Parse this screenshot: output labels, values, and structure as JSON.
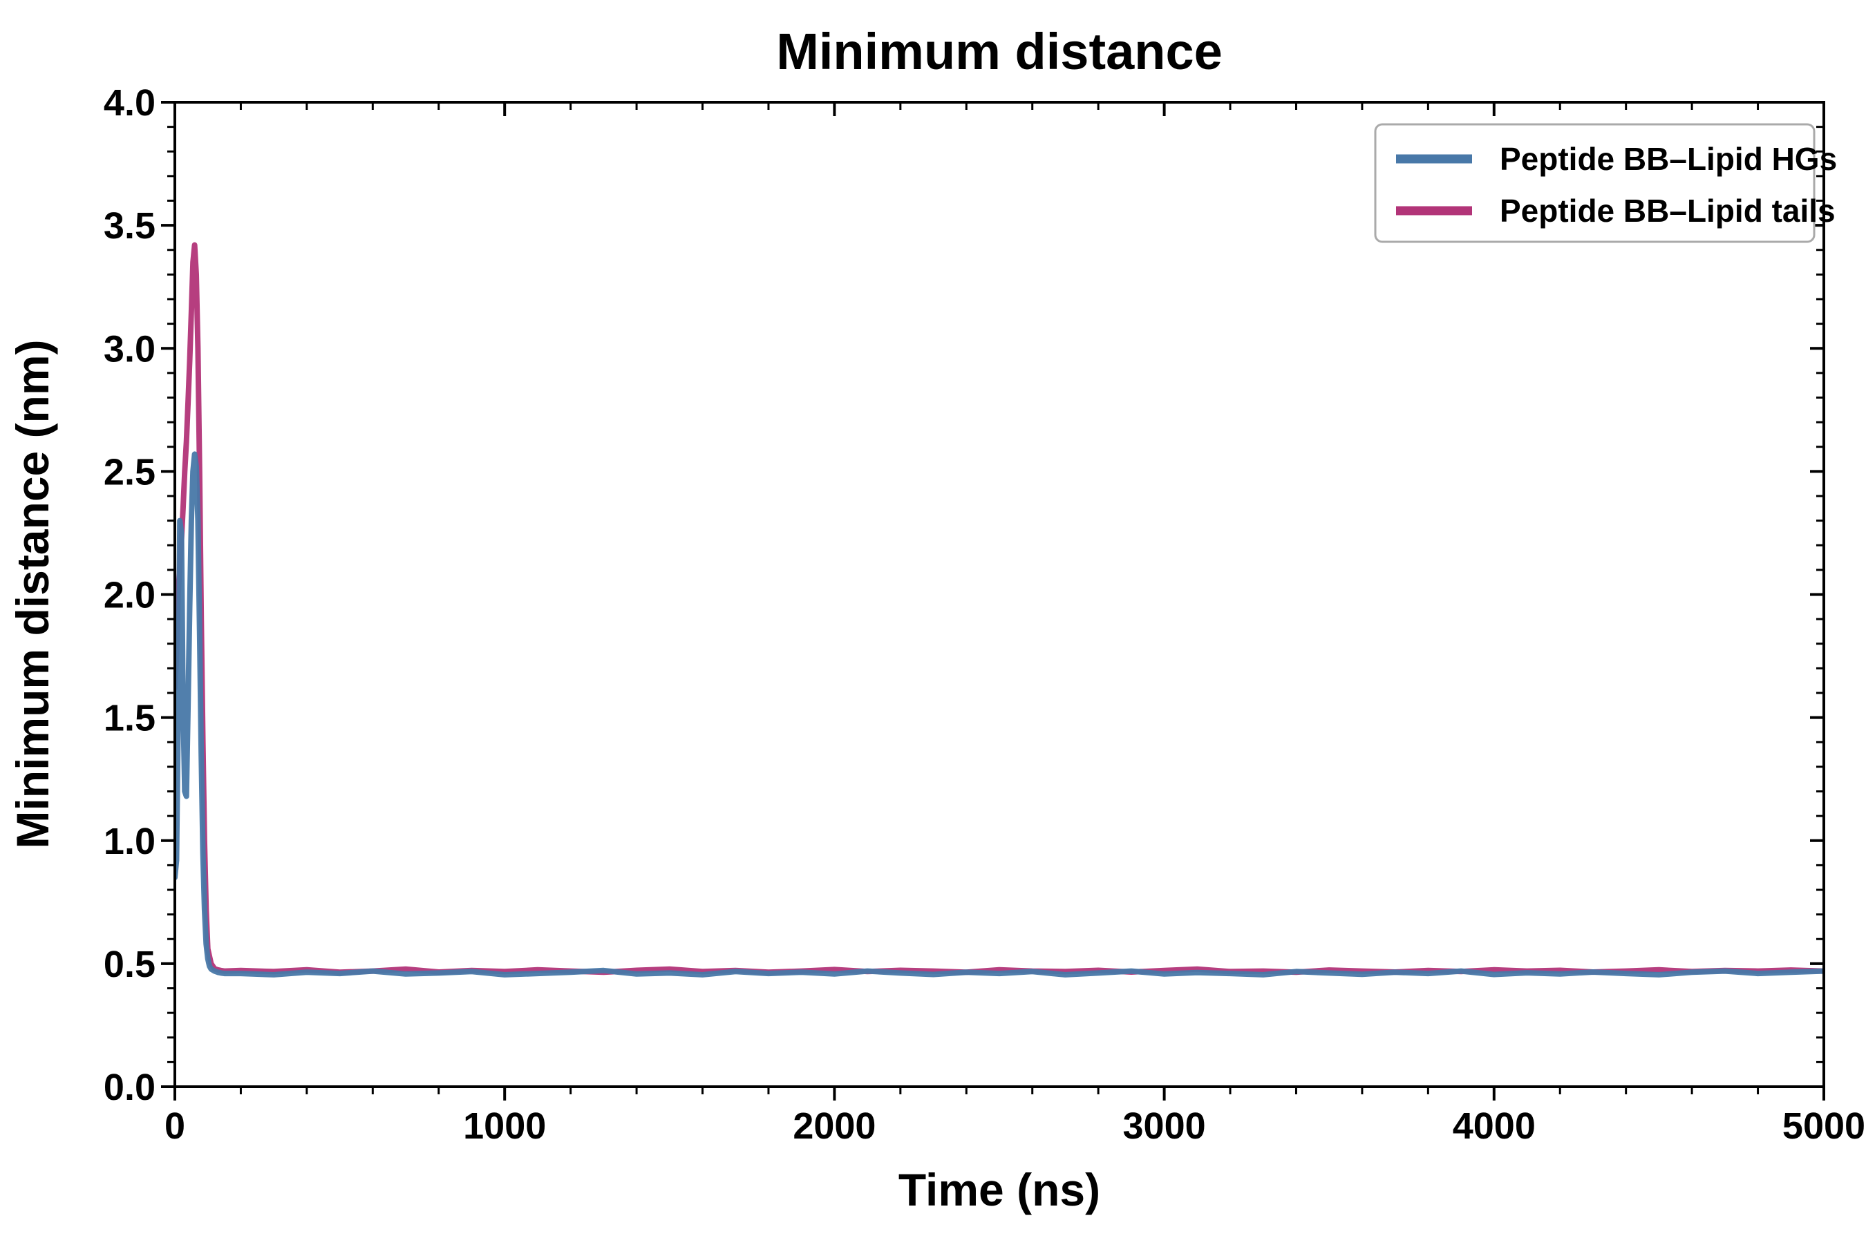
{
  "chart_data": {
    "type": "line",
    "title": "Minimum distance",
    "xlabel": "Time (ns)",
    "ylabel": "Minimum distance (nm)",
    "xlim": [
      0,
      5000
    ],
    "ylim": [
      0.0,
      4.0
    ],
    "xticks": [
      0,
      1000,
      2000,
      3000,
      4000,
      5000
    ],
    "xtick_labels": [
      "0",
      "1000",
      "2000",
      "3000",
      "4000",
      "5000"
    ],
    "yticks": [
      0.0,
      0.5,
      1.0,
      1.5,
      2.0,
      2.5,
      3.0,
      3.5,
      4.0
    ],
    "ytick_labels": [
      "0.0",
      "0.5",
      "1.0",
      "1.5",
      "2.0",
      "2.5",
      "3.0",
      "3.5",
      "4.0"
    ],
    "x_minor_step": 200,
    "y_minor_step": 0.1,
    "grid": false,
    "legend_position": "upper right",
    "axis_color": "#000000",
    "legend_border_color": "#aaaaaa",
    "series": [
      {
        "name": "Peptide BB–Lipid HGs",
        "color": "#4878A8",
        "x": [
          0,
          5,
          10,
          15,
          20,
          25,
          30,
          35,
          40,
          45,
          50,
          55,
          60,
          65,
          70,
          75,
          80,
          85,
          90,
          95,
          100,
          105,
          110,
          120,
          130,
          140,
          150,
          200,
          300,
          400,
          500,
          600,
          700,
          800,
          900,
          1000,
          1100,
          1200,
          1300,
          1400,
          1500,
          1600,
          1700,
          1800,
          1900,
          2000,
          2100,
          2200,
          2300,
          2400,
          2500,
          2600,
          2700,
          2800,
          2900,
          3000,
          3100,
          3200,
          3300,
          3400,
          3500,
          3600,
          3700,
          3800,
          3900,
          4000,
          4100,
          4200,
          4300,
          4400,
          4500,
          4600,
          4700,
          4800,
          4900,
          5000
        ],
        "y": [
          0.85,
          0.92,
          1.5,
          2.3,
          2.25,
          1.55,
          1.2,
          1.18,
          1.55,
          1.95,
          2.3,
          2.5,
          2.57,
          2.52,
          2.3,
          1.85,
          1.35,
          0.95,
          0.72,
          0.58,
          0.52,
          0.49,
          0.478,
          0.47,
          0.465,
          0.462,
          0.46,
          0.46,
          0.455,
          0.465,
          0.46,
          0.47,
          0.458,
          0.462,
          0.468,
          0.455,
          0.46,
          0.465,
          0.472,
          0.458,
          0.462,
          0.455,
          0.468,
          0.46,
          0.465,
          0.458,
          0.47,
          0.462,
          0.456,
          0.465,
          0.46,
          0.468,
          0.455,
          0.462,
          0.47,
          0.458,
          0.464,
          0.46,
          0.455,
          0.468,
          0.462,
          0.457,
          0.465,
          0.46,
          0.47,
          0.456,
          0.463,
          0.458,
          0.466,
          0.46,
          0.455,
          0.465,
          0.47,
          0.46,
          0.465,
          0.47
        ]
      },
      {
        "name": "Peptide BB–Lipid tails",
        "color": "#B23478",
        "x": [
          0,
          5,
          10,
          15,
          20,
          25,
          30,
          35,
          40,
          45,
          50,
          55,
          60,
          65,
          70,
          75,
          80,
          85,
          90,
          95,
          100,
          110,
          120,
          130,
          140,
          150,
          200,
          300,
          400,
          500,
          600,
          700,
          800,
          900,
          1000,
          1100,
          1200,
          1300,
          1400,
          1500,
          1600,
          1700,
          1800,
          1900,
          2000,
          2100,
          2200,
          2300,
          2400,
          2500,
          2600,
          2700,
          2800,
          2900,
          3000,
          3100,
          3200,
          3300,
          3400,
          3500,
          3600,
          3700,
          3800,
          3900,
          4000,
          4100,
          4200,
          4300,
          4400,
          4500,
          4600,
          4700,
          4800,
          4900,
          5000
        ],
        "y": [
          1.62,
          1.75,
          2.0,
          2.12,
          2.22,
          2.35,
          2.5,
          2.62,
          2.78,
          2.95,
          3.15,
          3.35,
          3.42,
          3.3,
          3.0,
          2.5,
          1.9,
          1.4,
          1.0,
          0.72,
          0.56,
          0.5,
          0.48,
          0.475,
          0.472,
          0.47,
          0.472,
          0.468,
          0.475,
          0.465,
          0.47,
          0.478,
          0.466,
          0.472,
          0.468,
          0.475,
          0.47,
          0.465,
          0.473,
          0.478,
          0.468,
          0.472,
          0.465,
          0.47,
          0.476,
          0.468,
          0.473,
          0.47,
          0.465,
          0.475,
          0.47,
          0.468,
          0.473,
          0.466,
          0.472,
          0.478,
          0.468,
          0.47,
          0.465,
          0.474,
          0.47,
          0.466,
          0.472,
          0.468,
          0.475,
          0.47,
          0.473,
          0.466,
          0.47,
          0.475,
          0.468,
          0.472,
          0.47,
          0.474,
          0.47
        ]
      }
    ]
  }
}
